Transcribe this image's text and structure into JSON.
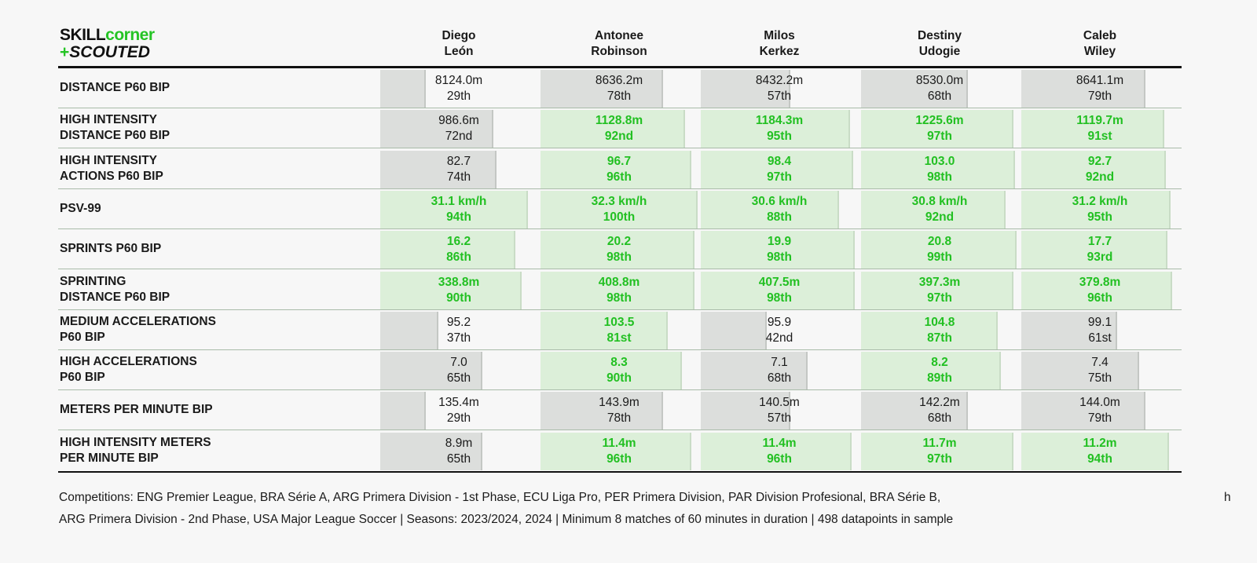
{
  "logo": {
    "skill": "SKILL",
    "corner": "corner",
    "plus": "+",
    "scouted": "SCOUTED"
  },
  "chart_data": {
    "type": "table",
    "players": [
      {
        "first": "Diego",
        "last": "León"
      },
      {
        "first": "Antonee",
        "last": "Robinson"
      },
      {
        "first": "Milos",
        "last": "Kerkez"
      },
      {
        "first": "Destiny",
        "last": "Udogie"
      },
      {
        "first": "Caleb",
        "last": "Wiley"
      }
    ],
    "metrics": [
      {
        "lines": [
          "DISTANCE P60 BIP"
        ],
        "cells": [
          {
            "value": "8124.0m",
            "rank": "29th",
            "pct": 29
          },
          {
            "value": "8636.2m",
            "rank": "78th",
            "pct": 78
          },
          {
            "value": "8432.2m",
            "rank": "57th",
            "pct": 57
          },
          {
            "value": "8530.0m",
            "rank": "68th",
            "pct": 68
          },
          {
            "value": "8641.1m",
            "rank": "79th",
            "pct": 79
          }
        ]
      },
      {
        "lines": [
          "HIGH INTENSITY",
          "DISTANCE P60 BIP"
        ],
        "cells": [
          {
            "value": "986.6m",
            "rank": "72nd",
            "pct": 72
          },
          {
            "value": "1128.8m",
            "rank": "92nd",
            "pct": 92
          },
          {
            "value": "1184.3m",
            "rank": "95th",
            "pct": 95
          },
          {
            "value": "1225.6m",
            "rank": "97th",
            "pct": 97
          },
          {
            "value": "1119.7m",
            "rank": "91st",
            "pct": 91
          }
        ]
      },
      {
        "lines": [
          "HIGH INTENSITY",
          "ACTIONS P60 BIP"
        ],
        "cells": [
          {
            "value": "82.7",
            "rank": "74th",
            "pct": 74
          },
          {
            "value": "96.7",
            "rank": "96th",
            "pct": 96
          },
          {
            "value": "98.4",
            "rank": "97th",
            "pct": 97
          },
          {
            "value": "103.0",
            "rank": "98th",
            "pct": 98
          },
          {
            "value": "92.7",
            "rank": "92nd",
            "pct": 92
          }
        ]
      },
      {
        "lines": [
          "PSV-99"
        ],
        "cells": [
          {
            "value": "31.1 km/h",
            "rank": "94th",
            "pct": 94
          },
          {
            "value": "32.3 km/h",
            "rank": "100th",
            "pct": 100
          },
          {
            "value": "30.6 km/h",
            "rank": "88th",
            "pct": 88
          },
          {
            "value": "30.8 km/h",
            "rank": "92nd",
            "pct": 92
          },
          {
            "value": "31.2 km/h",
            "rank": "95th",
            "pct": 95
          }
        ]
      },
      {
        "lines": [
          "SPRINTS P60 BIP"
        ],
        "cells": [
          {
            "value": "16.2",
            "rank": "86th",
            "pct": 86
          },
          {
            "value": "20.2",
            "rank": "98th",
            "pct": 98
          },
          {
            "value": "19.9",
            "rank": "98th",
            "pct": 98
          },
          {
            "value": "20.8",
            "rank": "99th",
            "pct": 99
          },
          {
            "value": "17.7",
            "rank": "93rd",
            "pct": 93
          }
        ]
      },
      {
        "lines": [
          "SPRINTING",
          "DISTANCE P60 BIP"
        ],
        "cells": [
          {
            "value": "338.8m",
            "rank": "90th",
            "pct": 90
          },
          {
            "value": "408.8m",
            "rank": "98th",
            "pct": 98
          },
          {
            "value": "407.5m",
            "rank": "98th",
            "pct": 98
          },
          {
            "value": "397.3m",
            "rank": "97th",
            "pct": 97
          },
          {
            "value": "379.8m",
            "rank": "96th",
            "pct": 96
          }
        ]
      },
      {
        "lines": [
          "MEDIUM ACCELERATIONS",
          "P60 BIP"
        ],
        "cells": [
          {
            "value": "95.2",
            "rank": "37th",
            "pct": 37
          },
          {
            "value": "103.5",
            "rank": "81st",
            "pct": 81
          },
          {
            "value": "95.9",
            "rank": "42nd",
            "pct": 42
          },
          {
            "value": "104.8",
            "rank": "87th",
            "pct": 87
          },
          {
            "value": "99.1",
            "rank": "61st",
            "pct": 61
          }
        ]
      },
      {
        "lines": [
          "HIGH ACCELERATIONS",
          "P60 BIP"
        ],
        "cells": [
          {
            "value": "7.0",
            "rank": "65th",
            "pct": 65
          },
          {
            "value": "8.3",
            "rank": "90th",
            "pct": 90
          },
          {
            "value": "7.1",
            "rank": "68th",
            "pct": 68
          },
          {
            "value": "8.2",
            "rank": "89th",
            "pct": 89
          },
          {
            "value": "7.4",
            "rank": "75th",
            "pct": 75
          }
        ]
      },
      {
        "lines": [
          "METERS PER MINUTE BIP"
        ],
        "cells": [
          {
            "value": "135.4m",
            "rank": "29th",
            "pct": 29
          },
          {
            "value": "143.9m",
            "rank": "78th",
            "pct": 78
          },
          {
            "value": "140.5m",
            "rank": "57th",
            "pct": 57
          },
          {
            "value": "142.2m",
            "rank": "68th",
            "pct": 68
          },
          {
            "value": "144.0m",
            "rank": "79th",
            "pct": 79
          }
        ]
      },
      {
        "lines": [
          "HIGH INTENSITY METERS",
          "PER MINUTE BIP"
        ],
        "cells": [
          {
            "value": "8.9m",
            "rank": "65th",
            "pct": 65
          },
          {
            "value": "11.4m",
            "rank": "96th",
            "pct": 96
          },
          {
            "value": "11.4m",
            "rank": "96th",
            "pct": 96
          },
          {
            "value": "11.7m",
            "rank": "97th",
            "pct": 97
          },
          {
            "value": "11.2m",
            "rank": "94th",
            "pct": 94
          }
        ]
      }
    ],
    "highlight_threshold_pct": 80,
    "colors": {
      "highlight_text": "#22c022",
      "highlight_bar": "#dcefd9",
      "normal_bar": "#dcdedc"
    }
  },
  "footer": {
    "line1": "Competitions: ENG Premier League, BRA Série A, ARG Primera Division - 1st Phase, ECU Liga Pro, PER Primera Division, PAR Division Profesional, BRA Série B,",
    "line2": "ARG Primera Division - 2nd Phase, USA Major League Soccer | Seasons: 2023/2024, 2024 | Minimum 8 matches of 60 minutes in duration | 498 datapoints in sample",
    "stray": "h"
  }
}
